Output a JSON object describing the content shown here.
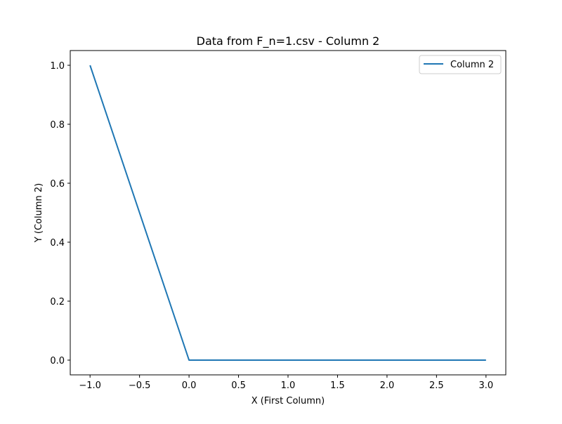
{
  "chart_data": {
    "type": "line",
    "title": "Data from F_n=1.csv - Column 2",
    "xlabel": "X (First Column)",
    "ylabel": "Y (Column 2)",
    "xlim": [
      -1.2,
      3.2
    ],
    "ylim": [
      -0.05,
      1.05
    ],
    "xticks": [
      -1.0,
      -0.5,
      0.0,
      0.5,
      1.0,
      1.5,
      2.0,
      2.5,
      3.0
    ],
    "xtick_labels": [
      "−1.0",
      "−0.5",
      "0.0",
      "0.5",
      "1.0",
      "1.5",
      "2.0",
      "2.5",
      "3.0"
    ],
    "yticks": [
      0.0,
      0.2,
      0.4,
      0.6,
      0.8,
      1.0
    ],
    "ytick_labels": [
      "0.0",
      "0.2",
      "0.4",
      "0.6",
      "0.8",
      "1.0"
    ],
    "grid": false,
    "legend_position": "top-right",
    "series": [
      {
        "name": "Column 2",
        "color": "#1f77b4",
        "x": [
          -1.0,
          0.0,
          3.0
        ],
        "y": [
          1.0,
          0.0,
          0.0
        ]
      }
    ]
  }
}
